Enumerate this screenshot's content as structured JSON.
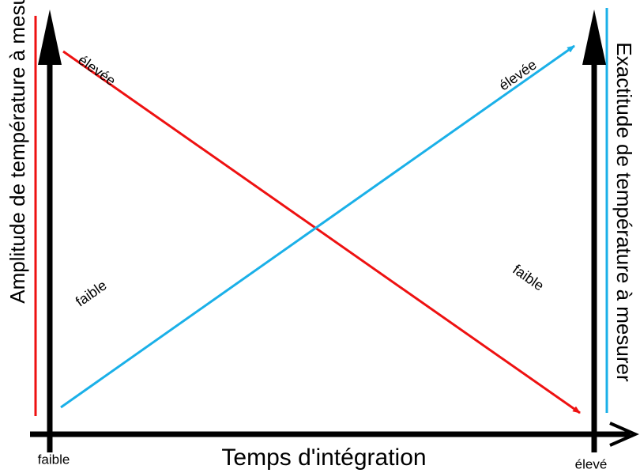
{
  "left_axis_label": "Amplitude de température à mesurer",
  "right_axis_label": "Exactitude de température à mesurer",
  "x_axis": {
    "title": "Temps d'intégration",
    "start_label": "faible",
    "end_label": "élevé"
  },
  "red_line": {
    "start_label": "élevée",
    "end_label": "faible"
  },
  "blue_line": {
    "start_label": "faible",
    "end_label": "élevée"
  }
}
